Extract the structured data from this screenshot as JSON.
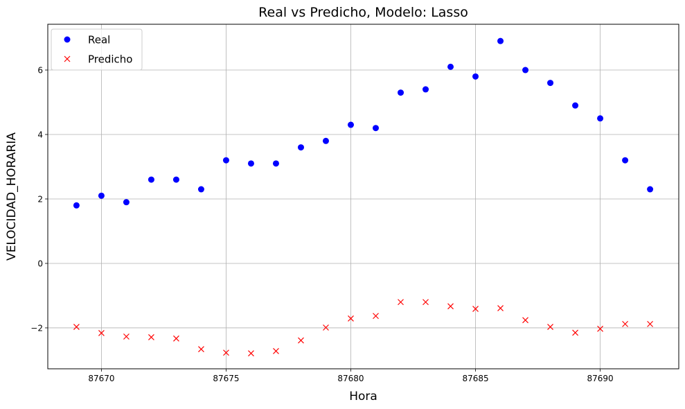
{
  "chart_data": {
    "type": "scatter",
    "title": "Real vs Predicho, Modelo: Lasso",
    "xlabel": "Hora",
    "ylabel": "VELOCIDAD_HORARIA",
    "xlim": [
      87667.85,
      87693.15
    ],
    "ylim": [
      -3.27,
      7.42
    ],
    "xticks": [
      87670,
      87675,
      87680,
      87685,
      87690
    ],
    "yticks": [
      -2,
      0,
      2,
      4,
      6
    ],
    "grid": true,
    "legend_position": "top-left",
    "x": [
      87669,
      87670,
      87671,
      87672,
      87673,
      87674,
      87675,
      87676,
      87677,
      87678,
      87679,
      87680,
      87681,
      87682,
      87683,
      87684,
      87685,
      87686,
      87687,
      87688,
      87689,
      87690,
      87691,
      87692
    ],
    "series": [
      {
        "name": "Real",
        "marker": "circle",
        "color": "#0000ff",
        "values": [
          1.8,
          2.1,
          1.9,
          2.6,
          2.6,
          2.3,
          3.2,
          3.1,
          3.1,
          3.6,
          3.8,
          4.3,
          4.2,
          5.3,
          5.4,
          6.1,
          5.8,
          6.9,
          6.0,
          5.6,
          4.9,
          4.5,
          3.2,
          2.3
        ]
      },
      {
        "name": "Predicho",
        "marker": "x",
        "color": "#ff0000",
        "values": [
          -1.97,
          -2.16,
          -2.27,
          -2.29,
          -2.33,
          -2.66,
          -2.77,
          -2.79,
          -2.72,
          -2.39,
          -1.99,
          -1.71,
          -1.63,
          -1.2,
          -1.2,
          -1.33,
          -1.41,
          -1.39,
          -1.76,
          -1.97,
          -2.15,
          -2.03,
          -1.88,
          -1.88
        ]
      }
    ]
  }
}
